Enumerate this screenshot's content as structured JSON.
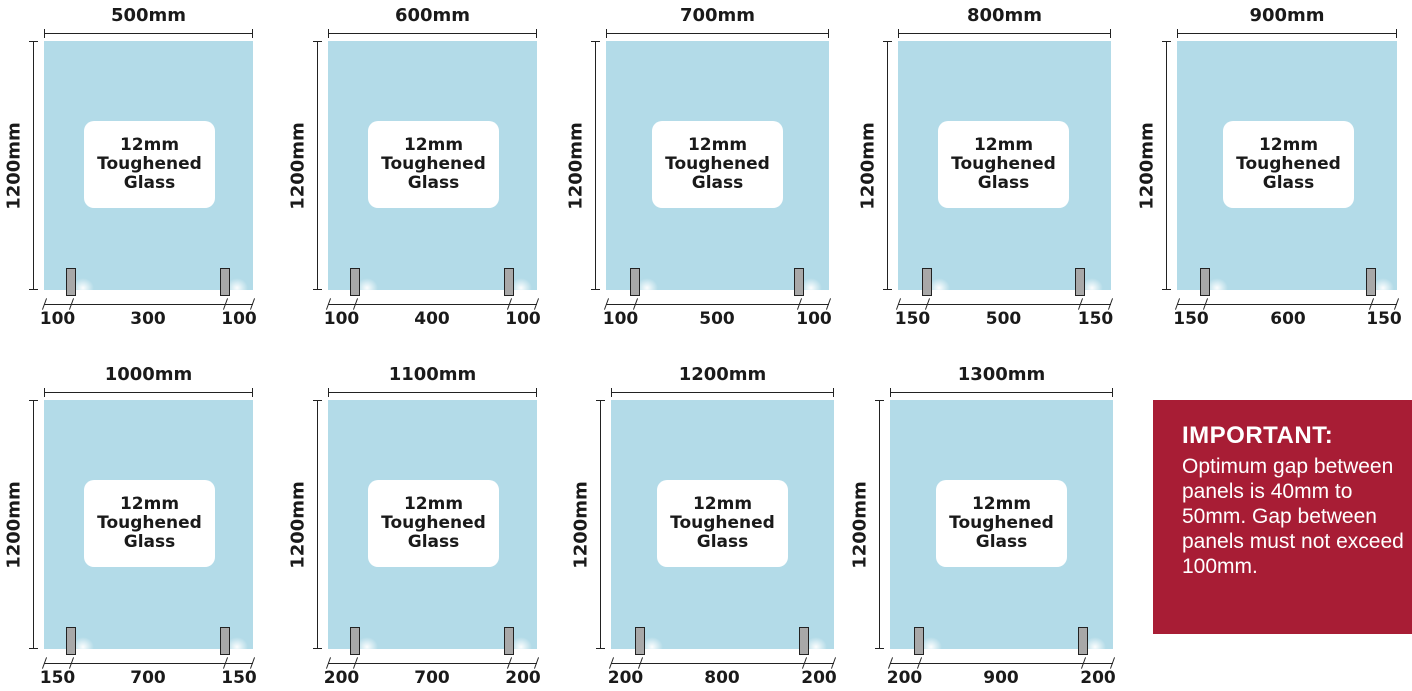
{
  "height_label": "1200mm",
  "glass_label": [
    "12mm",
    "Toughened",
    "Glass"
  ],
  "panels": [
    {
      "width": "500mm",
      "segments": [
        "100",
        "300",
        "100"
      ]
    },
    {
      "width": "600mm",
      "segments": [
        "100",
        "400",
        "100"
      ]
    },
    {
      "width": "700mm",
      "segments": [
        "100",
        "500",
        "100"
      ]
    },
    {
      "width": "800mm",
      "segments": [
        "150",
        "500",
        "150"
      ]
    },
    {
      "width": "900mm",
      "segments": [
        "150",
        "600",
        "150"
      ]
    },
    {
      "width": "1000mm",
      "segments": [
        "150",
        "700",
        "150"
      ]
    },
    {
      "width": "1100mm",
      "segments": [
        "200",
        "700",
        "200"
      ]
    },
    {
      "width": "1200mm",
      "segments": [
        "200",
        "800",
        "200"
      ]
    },
    {
      "width": "1300mm",
      "segments": [
        "200",
        "900",
        "200"
      ]
    }
  ],
  "important": {
    "title": "IMPORTANT:",
    "lines": [
      "Optimum gap between",
      "panels is 40mm to",
      "50mm. Gap between",
      "panels must not exceed",
      "100mm."
    ]
  },
  "colors": {
    "glass": "#b3dbe8",
    "important_bg": "#a81d35",
    "spigot": "#a8a8a8"
  }
}
